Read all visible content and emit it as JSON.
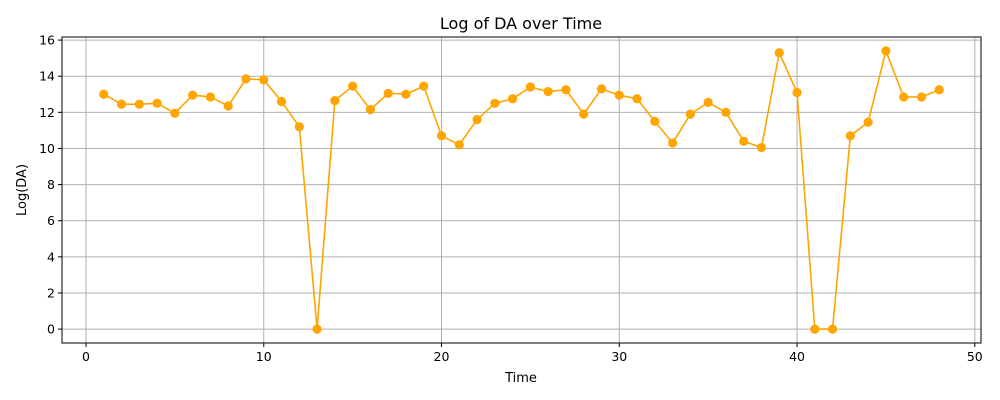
{
  "chart_data": {
    "type": "line",
    "title": "Log of DA over Time",
    "xlabel": "Time",
    "ylabel": "Log(DA)",
    "xlim": [
      -1.35,
      50.35
    ],
    "ylim": [
      -0.77,
      16.17
    ],
    "xticks": [
      0,
      10,
      20,
      30,
      40,
      50
    ],
    "yticks": [
      0,
      2,
      4,
      6,
      8,
      10,
      12,
      14,
      16
    ],
    "grid": true,
    "marker": "circle",
    "series": [
      {
        "color": "#ffa500",
        "x": [
          1,
          2,
          3,
          4,
          5,
          6,
          7,
          8,
          9,
          10,
          11,
          12,
          13,
          14,
          15,
          16,
          17,
          18,
          19,
          20,
          21,
          22,
          23,
          24,
          25,
          26,
          27,
          28,
          29,
          30,
          31,
          32,
          33,
          34,
          35,
          36,
          37,
          38,
          39,
          40,
          41,
          42,
          43,
          44,
          45,
          46,
          47,
          48
        ],
        "y": [
          13.0,
          12.45,
          12.45,
          12.5,
          11.95,
          12.95,
          12.85,
          12.35,
          13.85,
          13.8,
          12.6,
          11.2,
          0.0,
          12.65,
          13.45,
          12.15,
          13.05,
          13.0,
          13.45,
          10.7,
          10.2,
          11.6,
          12.5,
          12.75,
          13.4,
          13.15,
          13.25,
          11.9,
          13.3,
          12.95,
          12.75,
          11.5,
          10.3,
          11.9,
          12.55,
          12.0,
          10.4,
          10.05,
          15.3,
          13.1,
          0.0,
          0.0,
          10.7,
          11.45,
          15.4,
          12.85,
          12.85,
          13.25
        ]
      }
    ]
  }
}
